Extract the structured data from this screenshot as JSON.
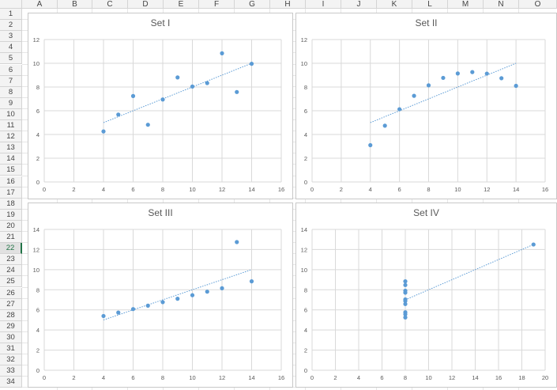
{
  "sheet": {
    "columns": [
      "A",
      "B",
      "C",
      "D",
      "E",
      "F",
      "G",
      "H",
      "I",
      "J",
      "K",
      "L",
      "M",
      "N",
      "O"
    ],
    "rows": [
      "1",
      "2",
      "3",
      "4",
      "5",
      "6",
      "7",
      "8",
      "9",
      "10",
      "11",
      "12",
      "13",
      "14",
      "15",
      "16",
      "17",
      "18",
      "19",
      "20",
      "21",
      "22",
      "23",
      "24",
      "25",
      "26",
      "27",
      "28",
      "29",
      "30",
      "31",
      "32",
      "33",
      "34"
    ],
    "active_row": "22"
  },
  "colors": {
    "marker": "#5b9bd5",
    "trendline": "#5b9bd5",
    "gridline": "#d9d9d9",
    "axis_text": "#595959"
  },
  "chart_data": [
    {
      "type": "scatter",
      "title": "Set I",
      "x": [
        10,
        8,
        13,
        9,
        11,
        14,
        6,
        4,
        12,
        7,
        5
      ],
      "y": [
        8.04,
        6.95,
        7.58,
        8.81,
        8.33,
        9.96,
        7.24,
        4.26,
        10.84,
        4.82,
        5.68
      ],
      "xlim": [
        0,
        16
      ],
      "ylim": [
        0,
        12
      ],
      "xticks": [
        "0",
        "2",
        "4",
        "6",
        "8",
        "10",
        "12",
        "14",
        "16"
      ],
      "yticks": [
        "0",
        "2",
        "4",
        "6",
        "8",
        "10",
        "12"
      ],
      "trendline": {
        "type": "linear",
        "x": [
          4,
          14
        ],
        "y": [
          5.0,
          10.0
        ]
      },
      "grid": true
    },
    {
      "type": "scatter",
      "title": "Set II",
      "x": [
        10,
        8,
        13,
        9,
        11,
        14,
        6,
        4,
        12,
        7,
        5
      ],
      "y": [
        9.14,
        8.14,
        8.74,
        8.77,
        9.26,
        8.1,
        6.13,
        3.1,
        9.13,
        7.26,
        4.74
      ],
      "xlim": [
        0,
        16
      ],
      "ylim": [
        0,
        12
      ],
      "xticks": [
        "0",
        "2",
        "4",
        "6",
        "8",
        "10",
        "12",
        "14",
        "16"
      ],
      "yticks": [
        "0",
        "2",
        "4",
        "6",
        "8",
        "10",
        "12"
      ],
      "trendline": {
        "type": "linear",
        "x": [
          4,
          14
        ],
        "y": [
          5.0,
          10.0
        ]
      },
      "grid": true
    },
    {
      "type": "scatter",
      "title": "Set III",
      "x": [
        10,
        8,
        13,
        9,
        11,
        14,
        6,
        4,
        12,
        7,
        5
      ],
      "y": [
        7.46,
        6.77,
        12.74,
        7.11,
        7.81,
        8.84,
        6.08,
        5.39,
        8.15,
        6.42,
        5.73
      ],
      "xlim": [
        0,
        16
      ],
      "ylim": [
        0,
        14
      ],
      "xticks": [
        "0",
        "2",
        "4",
        "6",
        "8",
        "10",
        "12",
        "14",
        "16"
      ],
      "yticks": [
        "0",
        "2",
        "4",
        "6",
        "8",
        "10",
        "12",
        "14"
      ],
      "trendline": {
        "type": "linear",
        "x": [
          4,
          14
        ],
        "y": [
          5.0,
          10.0
        ]
      },
      "grid": true
    },
    {
      "type": "scatter",
      "title": "Set IV",
      "x": [
        8,
        8,
        8,
        8,
        8,
        8,
        8,
        19,
        8,
        8,
        8
      ],
      "y": [
        6.58,
        5.76,
        7.71,
        8.84,
        8.47,
        7.04,
        5.25,
        12.5,
        5.56,
        7.91,
        6.89
      ],
      "xlim": [
        0,
        20
      ],
      "ylim": [
        0,
        14
      ],
      "xticks": [
        "0",
        "2",
        "4",
        "6",
        "8",
        "10",
        "12",
        "14",
        "16",
        "18",
        "20"
      ],
      "yticks": [
        "0",
        "2",
        "4",
        "6",
        "8",
        "10",
        "12",
        "14"
      ],
      "trendline": {
        "type": "linear",
        "x": [
          8,
          19
        ],
        "y": [
          7.0,
          12.5
        ]
      },
      "grid": true
    }
  ]
}
